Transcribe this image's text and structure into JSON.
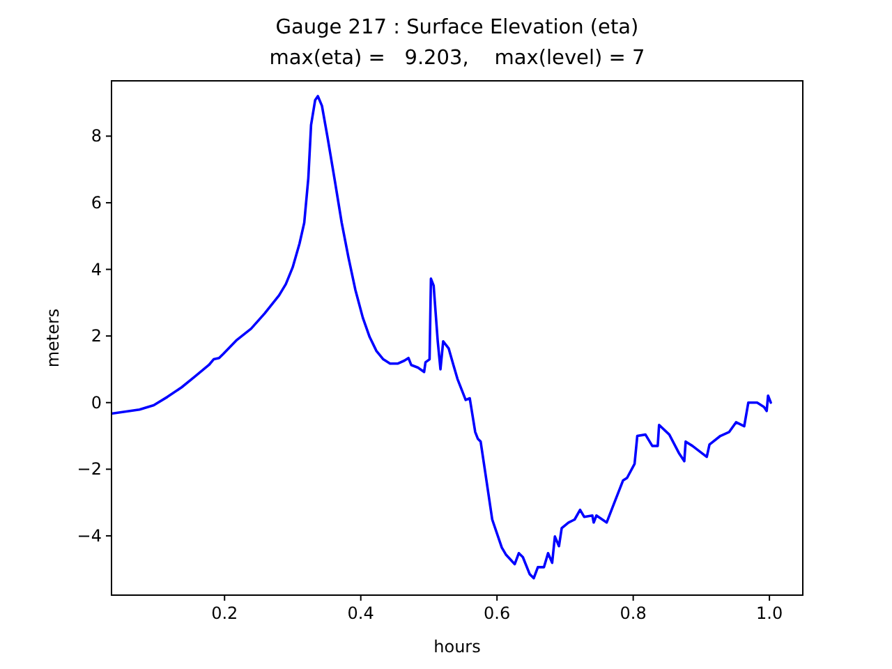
{
  "chart_data": {
    "type": "line",
    "title": "Gauge 217 : Surface Elevation (eta)",
    "subtitle": "max(eta) =   9.203,    max(level) = 7",
    "xlabel": "hours",
    "ylabel": "meters",
    "xlim": [
      0.034,
      1.049
    ],
    "ylim": [
      -5.78,
      9.66
    ],
    "xticks": [
      {
        "value": 0.2,
        "label": "0.2"
      },
      {
        "value": 0.4,
        "label": "0.4"
      },
      {
        "value": 0.6,
        "label": "0.6"
      },
      {
        "value": 0.8,
        "label": "0.8"
      },
      {
        "value": 1.0,
        "label": "1.0"
      }
    ],
    "yticks": [
      -4,
      -2,
      0,
      2,
      4,
      6,
      8
    ],
    "grid": false,
    "line_style": "solid",
    "series": [
      {
        "color": "#0000ff",
        "x": [
          0.034,
          0.075,
          0.096,
          0.116,
          0.137,
          0.157,
          0.177,
          0.184,
          0.192,
          0.198,
          0.218,
          0.239,
          0.259,
          0.28,
          0.29,
          0.3,
          0.31,
          0.317,
          0.323,
          0.327,
          0.333,
          0.337,
          0.343,
          0.351,
          0.362,
          0.372,
          0.382,
          0.392,
          0.403,
          0.413,
          0.423,
          0.433,
          0.443,
          0.454,
          0.464,
          0.47,
          0.474,
          0.484,
          0.493,
          0.495,
          0.501,
          0.503,
          0.507,
          0.513,
          0.517,
          0.521,
          0.529,
          0.536,
          0.542,
          0.546,
          0.554,
          0.56,
          0.568,
          0.572,
          0.576,
          0.583,
          0.593,
          0.607,
          0.613,
          0.626,
          0.632,
          0.638,
          0.648,
          0.654,
          0.66,
          0.669,
          0.675,
          0.681,
          0.685,
          0.691,
          0.695,
          0.705,
          0.714,
          0.722,
          0.728,
          0.74,
          0.742,
          0.746,
          0.761,
          0.773,
          0.785,
          0.791,
          0.802,
          0.806,
          0.818,
          0.828,
          0.836,
          0.838,
          0.853,
          0.867,
          0.875,
          0.877,
          0.887,
          0.908,
          0.912,
          0.928,
          0.941,
          0.951,
          0.963,
          0.969,
          0.982,
          0.992,
          0.996,
          0.998,
          1.002
        ],
        "values": [
          -0.33,
          -0.21,
          -0.08,
          0.17,
          0.46,
          0.79,
          1.13,
          1.3,
          1.34,
          1.46,
          1.88,
          2.22,
          2.68,
          3.22,
          3.56,
          4.06,
          4.77,
          5.4,
          6.74,
          8.33,
          9.08,
          9.2,
          8.91,
          7.99,
          6.65,
          5.4,
          4.35,
          3.39,
          2.55,
          1.97,
          1.55,
          1.3,
          1.17,
          1.17,
          1.26,
          1.34,
          1.13,
          1.05,
          0.92,
          1.21,
          1.3,
          3.72,
          3.51,
          1.84,
          1.0,
          1.84,
          1.63,
          1.13,
          0.71,
          0.5,
          0.08,
          0.13,
          -0.88,
          -1.09,
          -1.17,
          -2.13,
          -3.51,
          -4.35,
          -4.56,
          -4.85,
          -4.52,
          -4.64,
          -5.15,
          -5.27,
          -4.94,
          -4.94,
          -4.52,
          -4.81,
          -4.02,
          -4.31,
          -3.77,
          -3.6,
          -3.51,
          -3.22,
          -3.43,
          -3.39,
          -3.6,
          -3.39,
          -3.6,
          -2.97,
          -2.34,
          -2.26,
          -1.84,
          -1.0,
          -0.96,
          -1.3,
          -1.3,
          -0.67,
          -0.96,
          -1.51,
          -1.76,
          -1.17,
          -1.3,
          -1.63,
          -1.26,
          -1.0,
          -0.88,
          -0.59,
          -0.71,
          0.0,
          0.0,
          -0.13,
          -0.25,
          0.21,
          0.0
        ]
      }
    ]
  }
}
